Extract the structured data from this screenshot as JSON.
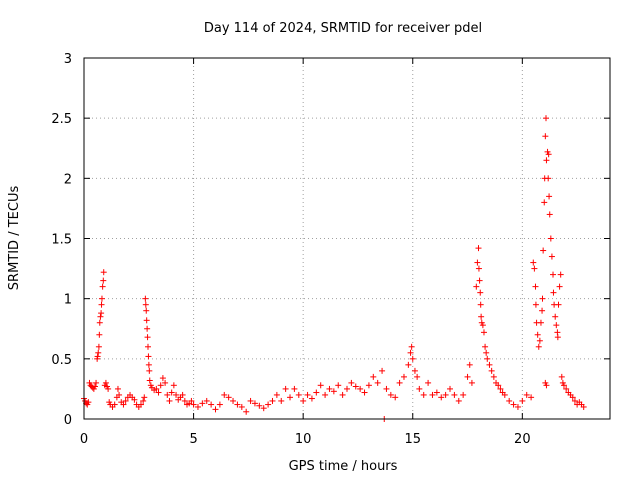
{
  "chart_data": {
    "type": "scatter",
    "title": "Day 114 of 2024, SRMTID for receiver pdel",
    "xlabel": "GPS time / hours",
    "ylabel": "SRMTID / TECUs",
    "xlim": [
      0,
      24
    ],
    "ylim": [
      0,
      3
    ],
    "xticks": [
      0,
      5,
      10,
      15,
      20
    ],
    "xtick_labels": [
      "0",
      "5",
      "10",
      "15",
      "20"
    ],
    "yticks": [
      0,
      0.5,
      1,
      1.5,
      2,
      2.5,
      3
    ],
    "ytick_labels": [
      "0",
      "0.5",
      "1",
      "1.5",
      "2",
      "2.5",
      "3"
    ],
    "grid": true,
    "marker": "plus",
    "color": "#ff0000",
    "series": [
      {
        "name": "SRMTID",
        "points": [
          [
            0.0,
            0.17
          ],
          [
            0.05,
            0.15
          ],
          [
            0.1,
            0.13
          ],
          [
            0.15,
            0.12
          ],
          [
            0.2,
            0.14
          ],
          [
            0.25,
            0.3
          ],
          [
            0.3,
            0.28
          ],
          [
            0.35,
            0.27
          ],
          [
            0.4,
            0.26
          ],
          [
            0.45,
            0.25
          ],
          [
            0.5,
            0.27
          ],
          [
            0.55,
            0.3
          ],
          [
            0.6,
            0.5
          ],
          [
            0.62,
            0.52
          ],
          [
            0.65,
            0.55
          ],
          [
            0.68,
            0.6
          ],
          [
            0.7,
            0.7
          ],
          [
            0.72,
            0.8
          ],
          [
            0.75,
            0.85
          ],
          [
            0.78,
            0.88
          ],
          [
            0.8,
            0.95
          ],
          [
            0.82,
            1.0
          ],
          [
            0.85,
            1.1
          ],
          [
            0.88,
            1.15
          ],
          [
            0.9,
            1.22
          ],
          [
            0.95,
            0.28
          ],
          [
            1.0,
            0.3
          ],
          [
            1.05,
            0.27
          ],
          [
            1.1,
            0.25
          ],
          [
            1.15,
            0.14
          ],
          [
            1.2,
            0.12
          ],
          [
            1.3,
            0.1
          ],
          [
            1.4,
            0.12
          ],
          [
            1.5,
            0.18
          ],
          [
            1.55,
            0.25
          ],
          [
            1.6,
            0.2
          ],
          [
            1.7,
            0.14
          ],
          [
            1.8,
            0.12
          ],
          [
            1.9,
            0.15
          ],
          [
            2.0,
            0.18
          ],
          [
            2.1,
            0.2
          ],
          [
            2.2,
            0.18
          ],
          [
            2.3,
            0.16
          ],
          [
            2.4,
            0.12
          ],
          [
            2.5,
            0.1
          ],
          [
            2.6,
            0.12
          ],
          [
            2.7,
            0.15
          ],
          [
            2.75,
            0.18
          ],
          [
            2.8,
            1.0
          ],
          [
            2.82,
            0.95
          ],
          [
            2.84,
            0.9
          ],
          [
            2.86,
            0.82
          ],
          [
            2.88,
            0.75
          ],
          [
            2.9,
            0.68
          ],
          [
            2.92,
            0.6
          ],
          [
            2.94,
            0.52
          ],
          [
            2.96,
            0.45
          ],
          [
            2.98,
            0.4
          ],
          [
            3.0,
            0.32
          ],
          [
            3.05,
            0.28
          ],
          [
            3.1,
            0.26
          ],
          [
            3.2,
            0.24
          ],
          [
            3.3,
            0.25
          ],
          [
            3.4,
            0.22
          ],
          [
            3.5,
            0.28
          ],
          [
            3.6,
            0.34
          ],
          [
            3.7,
            0.3
          ],
          [
            3.8,
            0.2
          ],
          [
            3.9,
            0.15
          ],
          [
            4.0,
            0.22
          ],
          [
            4.1,
            0.28
          ],
          [
            4.2,
            0.2
          ],
          [
            4.3,
            0.16
          ],
          [
            4.4,
            0.18
          ],
          [
            4.5,
            0.2
          ],
          [
            4.6,
            0.15
          ],
          [
            4.7,
            0.12
          ],
          [
            4.8,
            0.13
          ],
          [
            4.9,
            0.15
          ],
          [
            5.0,
            0.12
          ],
          [
            5.2,
            0.1
          ],
          [
            5.4,
            0.13
          ],
          [
            5.6,
            0.15
          ],
          [
            5.8,
            0.12
          ],
          [
            6.0,
            0.08
          ],
          [
            6.2,
            0.12
          ],
          [
            6.4,
            0.2
          ],
          [
            6.6,
            0.18
          ],
          [
            6.8,
            0.15
          ],
          [
            7.0,
            0.12
          ],
          [
            7.2,
            0.1
          ],
          [
            7.4,
            0.06
          ],
          [
            7.6,
            0.15
          ],
          [
            7.8,
            0.13
          ],
          [
            8.0,
            0.11
          ],
          [
            8.2,
            0.09
          ],
          [
            8.4,
            0.12
          ],
          [
            8.6,
            0.15
          ],
          [
            8.8,
            0.2
          ],
          [
            9.0,
            0.15
          ],
          [
            9.2,
            0.25
          ],
          [
            9.4,
            0.18
          ],
          [
            9.6,
            0.25
          ],
          [
            9.8,
            0.2
          ],
          [
            10.0,
            0.15
          ],
          [
            10.2,
            0.2
          ],
          [
            10.4,
            0.17
          ],
          [
            10.6,
            0.22
          ],
          [
            10.8,
            0.28
          ],
          [
            11.0,
            0.2
          ],
          [
            11.2,
            0.25
          ],
          [
            11.4,
            0.23
          ],
          [
            11.6,
            0.28
          ],
          [
            11.8,
            0.2
          ],
          [
            12.0,
            0.25
          ],
          [
            12.2,
            0.3
          ],
          [
            12.4,
            0.27
          ],
          [
            12.6,
            0.25
          ],
          [
            12.8,
            0.22
          ],
          [
            13.0,
            0.28
          ],
          [
            13.2,
            0.35
          ],
          [
            13.4,
            0.3
          ],
          [
            13.6,
            0.4
          ],
          [
            13.7,
            0.0
          ],
          [
            13.8,
            0.25
          ],
          [
            14.0,
            0.2
          ],
          [
            14.2,
            0.18
          ],
          [
            14.4,
            0.3
          ],
          [
            14.6,
            0.35
          ],
          [
            14.8,
            0.45
          ],
          [
            14.9,
            0.55
          ],
          [
            14.95,
            0.6
          ],
          [
            15.0,
            0.5
          ],
          [
            15.1,
            0.4
          ],
          [
            15.2,
            0.35
          ],
          [
            15.3,
            0.25
          ],
          [
            15.5,
            0.2
          ],
          [
            15.7,
            0.3
          ],
          [
            15.9,
            0.2
          ],
          [
            16.1,
            0.22
          ],
          [
            16.3,
            0.18
          ],
          [
            16.5,
            0.2
          ],
          [
            16.7,
            0.25
          ],
          [
            16.9,
            0.2
          ],
          [
            17.1,
            0.15
          ],
          [
            17.3,
            0.2
          ],
          [
            17.5,
            0.35
          ],
          [
            17.6,
            0.45
          ],
          [
            17.7,
            0.3
          ],
          [
            17.9,
            1.1
          ],
          [
            17.95,
            1.3
          ],
          [
            18.0,
            1.42
          ],
          [
            18.02,
            1.25
          ],
          [
            18.05,
            1.15
          ],
          [
            18.08,
            1.05
          ],
          [
            18.1,
            0.95
          ],
          [
            18.12,
            0.85
          ],
          [
            18.15,
            0.8
          ],
          [
            18.2,
            0.78
          ],
          [
            18.25,
            0.72
          ],
          [
            18.3,
            0.6
          ],
          [
            18.35,
            0.55
          ],
          [
            18.4,
            0.5
          ],
          [
            18.5,
            0.45
          ],
          [
            18.6,
            0.4
          ],
          [
            18.7,
            0.35
          ],
          [
            18.8,
            0.3
          ],
          [
            18.9,
            0.28
          ],
          [
            19.0,
            0.25
          ],
          [
            19.1,
            0.22
          ],
          [
            19.2,
            0.2
          ],
          [
            19.4,
            0.15
          ],
          [
            19.6,
            0.12
          ],
          [
            19.8,
            0.1
          ],
          [
            20.0,
            0.15
          ],
          [
            20.2,
            0.2
          ],
          [
            20.4,
            0.18
          ],
          [
            20.5,
            1.3
          ],
          [
            20.55,
            1.25
          ],
          [
            20.6,
            1.1
          ],
          [
            20.62,
            0.95
          ],
          [
            20.65,
            0.8
          ],
          [
            20.7,
            0.7
          ],
          [
            20.75,
            0.6
          ],
          [
            20.8,
            0.65
          ],
          [
            20.85,
            0.8
          ],
          [
            20.9,
            0.9
          ],
          [
            20.92,
            1.0
          ],
          [
            20.95,
            1.4
          ],
          [
            21.0,
            1.8
          ],
          [
            21.02,
            2.0
          ],
          [
            21.05,
            2.35
          ],
          [
            21.08,
            2.5
          ],
          [
            21.1,
            2.15
          ],
          [
            21.15,
            2.22
          ],
          [
            21.18,
            2.0
          ],
          [
            21.2,
            2.2
          ],
          [
            21.22,
            1.85
          ],
          [
            21.25,
            1.7
          ],
          [
            21.3,
            1.5
          ],
          [
            21.35,
            1.35
          ],
          [
            21.4,
            1.2
          ],
          [
            21.42,
            1.05
          ],
          [
            21.45,
            0.95
          ],
          [
            21.5,
            0.85
          ],
          [
            21.55,
            0.78
          ],
          [
            21.6,
            0.72
          ],
          [
            21.62,
            0.68
          ],
          [
            21.65,
            0.95
          ],
          [
            21.7,
            1.1
          ],
          [
            21.75,
            1.2
          ],
          [
            21.8,
            0.35
          ],
          [
            21.85,
            0.3
          ],
          [
            21.9,
            0.28
          ],
          [
            22.0,
            0.25
          ],
          [
            22.1,
            0.22
          ],
          [
            22.2,
            0.2
          ],
          [
            22.3,
            0.18
          ],
          [
            22.4,
            0.15
          ],
          [
            22.5,
            0.12
          ],
          [
            22.6,
            0.14
          ],
          [
            22.7,
            0.12
          ],
          [
            22.8,
            0.1
          ],
          [
            21.05,
            0.3
          ],
          [
            21.1,
            0.28
          ]
        ]
      }
    ]
  }
}
